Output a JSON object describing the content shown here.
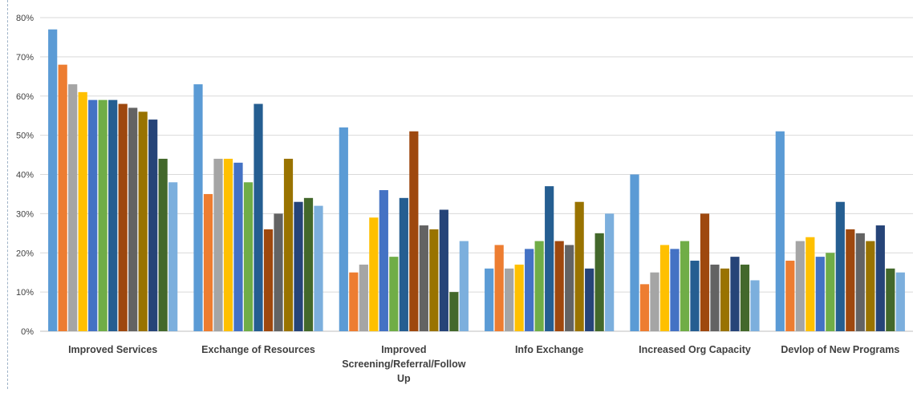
{
  "chart_data": {
    "type": "bar",
    "title": "",
    "xlabel": "",
    "ylabel": "",
    "ylim": [
      0,
      80
    ],
    "y_ticks": [
      "0%",
      "10%",
      "20%",
      "30%",
      "40%",
      "50%",
      "60%",
      "70%",
      "80%"
    ],
    "grid": "horizontal",
    "legend": "none",
    "categories": [
      "Improved Services",
      "Exchange of Resources",
      "Improved Screening/Referral/Follow Up",
      "Info Exchange",
      "Increased Org Capacity",
      "Devlop of New Programs"
    ],
    "category_label_lines": [
      [
        "Improved Services"
      ],
      [
        "Exchange of Resources"
      ],
      [
        "Improved",
        "Screening/Referral/Follow",
        "Up"
      ],
      [
        "Info Exchange"
      ],
      [
        "Increased Org Capacity"
      ],
      [
        "Devlop of New Programs"
      ]
    ],
    "series_colors": [
      "#5b9bd5",
      "#ed7d31",
      "#a5a5a5",
      "#ffc000",
      "#4472c4",
      "#70ad47",
      "#255e91",
      "#9e480e",
      "#636363",
      "#997300",
      "#264478",
      "#43682b",
      "#7cafdd"
    ],
    "values": [
      [
        77,
        68,
        63,
        61,
        59,
        59,
        59,
        58,
        57,
        56,
        54,
        44,
        38
      ],
      [
        63,
        35,
        44,
        44,
        43,
        38,
        58,
        26,
        30,
        44,
        33,
        34,
        32
      ],
      [
        52,
        15,
        17,
        29,
        36,
        19,
        34,
        51,
        27,
        26,
        31,
        10,
        23
      ],
      [
        16,
        22,
        16,
        17,
        21,
        23,
        37,
        23,
        22,
        33,
        16,
        25,
        30
      ],
      [
        40,
        12,
        15,
        22,
        21,
        23,
        18,
        30,
        17,
        16,
        19,
        17,
        13
      ],
      [
        51,
        18,
        23,
        24,
        19,
        20,
        33,
        26,
        25,
        23,
        27,
        16,
        15
      ]
    ],
    "colors": {
      "grid": "#d9d9d9",
      "axis": "#bfbfbf",
      "text": "#404040"
    }
  }
}
